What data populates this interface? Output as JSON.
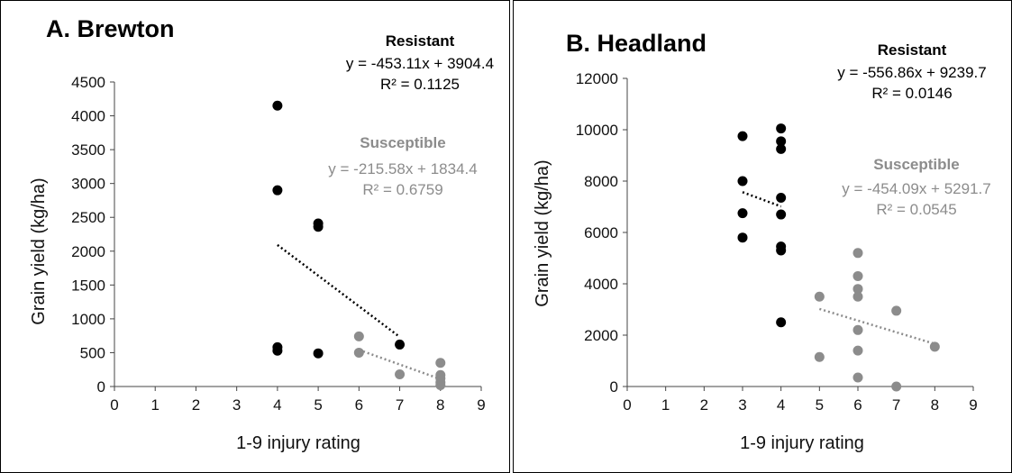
{
  "chart_data": [
    {
      "type": "scatter",
      "title": "A. Brewton",
      "xlabel": "1-9 injury rating",
      "ylabel": "Grain yield (kg/ha)",
      "xlim": [
        0,
        9
      ],
      "ylim": [
        0,
        4500
      ],
      "xticks": [
        "0",
        "1",
        "2",
        "3",
        "4",
        "5",
        "6",
        "7",
        "8",
        "9"
      ],
      "yticks": [
        "0",
        "500",
        "1000",
        "1500",
        "2000",
        "2500",
        "3000",
        "3500",
        "4000",
        "4500"
      ],
      "series": [
        {
          "name": "Resistant",
          "color": "#000000",
          "points": [
            [
              4,
              4150
            ],
            [
              4,
              2900
            ],
            [
              4,
              580
            ],
            [
              4,
              530
            ],
            [
              5,
              2410
            ],
            [
              5,
              2360
            ],
            [
              5,
              490
            ],
            [
              7,
              620
            ]
          ],
          "trend": {
            "slope": -453.11,
            "intercept": 3904.4,
            "x_range": [
              4,
              7
            ]
          },
          "equation": "y = -453.11x + 3904.4",
          "r2": "R² = 0.1125"
        },
        {
          "name": "Susceptible",
          "color": "#8c8c8c",
          "points": [
            [
              6,
              740
            ],
            [
              6,
              500
            ],
            [
              7,
              180
            ],
            [
              8,
              350
            ],
            [
              8,
              170
            ],
            [
              8,
              120
            ],
            [
              8,
              60
            ],
            [
              8,
              20
            ]
          ],
          "trend": {
            "slope": -215.58,
            "intercept": 1834.4,
            "x_range": [
              6,
              8
            ]
          },
          "equation": "y = -215.58x + 1834.4",
          "r2": "R² = 0.6759"
        }
      ]
    },
    {
      "type": "scatter",
      "title": "B. Headland",
      "xlabel": "1-9 injury rating",
      "ylabel": "Grain yield (kg/ha)",
      "xlim": [
        0,
        9
      ],
      "ylim": [
        0,
        12000
      ],
      "xticks": [
        "0",
        "1",
        "2",
        "3",
        "4",
        "5",
        "6",
        "7",
        "8",
        "9"
      ],
      "yticks": [
        "0",
        "2000",
        "4000",
        "6000",
        "8000",
        "10000",
        "12000"
      ],
      "series": [
        {
          "name": "Resistant",
          "color": "#000000",
          "points": [
            [
              3,
              9750
            ],
            [
              3,
              8000
            ],
            [
              3,
              6750
            ],
            [
              3,
              5800
            ],
            [
              4,
              10050
            ],
            [
              4,
              9550
            ],
            [
              4,
              9250
            ],
            [
              4,
              7350
            ],
            [
              4,
              6700
            ],
            [
              4,
              5450
            ],
            [
              4,
              5300
            ],
            [
              4,
              2500
            ]
          ],
          "trend": {
            "slope": -556.86,
            "intercept": 9239.7,
            "x_range": [
              3,
              4
            ]
          },
          "equation": "y = -556.86x + 9239.7",
          "r2": "R² = 0.0146"
        },
        {
          "name": "Susceptible",
          "color": "#8c8c8c",
          "points": [
            [
              5,
              3500
            ],
            [
              5,
              1150
            ],
            [
              6,
              5200
            ],
            [
              6,
              4300
            ],
            [
              6,
              3800
            ],
            [
              6,
              3500
            ],
            [
              6,
              2200
            ],
            [
              6,
              1400
            ],
            [
              6,
              350
            ],
            [
              7,
              2950
            ],
            [
              7,
              0
            ],
            [
              8,
              1550
            ]
          ],
          "trend": {
            "slope": -454.09,
            "intercept": 5291.7,
            "x_range": [
              5,
              8
            ]
          },
          "equation": "y = -454.09x + 5291.7",
          "r2": "R² = 0.0545"
        }
      ]
    }
  ]
}
